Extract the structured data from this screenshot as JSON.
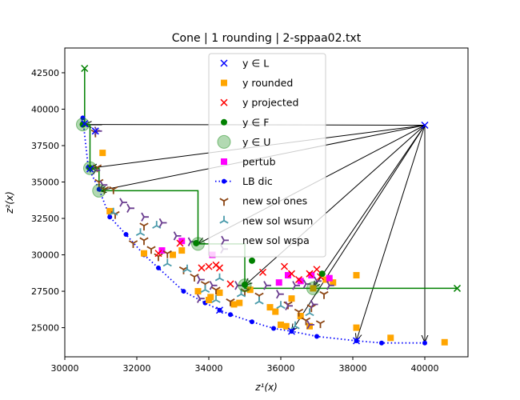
{
  "chart_data": {
    "type": "scatter",
    "title": "Cone | 1 rounding | 2-sppaa02.txt",
    "xlabel": "z¹(x)",
    "ylabel": "z²(x)",
    "xlim": [
      30000,
      41200
    ],
    "ylim": [
      23000,
      44200
    ],
    "xticks": [
      30000,
      32000,
      34000,
      36000,
      38000,
      40000
    ],
    "yticks": [
      25000,
      27500,
      30000,
      32500,
      35000,
      37500,
      40000,
      42500
    ],
    "xtick_labels": [
      "30000",
      "32000",
      "34000",
      "36000",
      "38000",
      "40000"
    ],
    "ytick_labels": [
      "25000",
      "27500",
      "30000",
      "32500",
      "35000",
      "37500",
      "40000",
      "42500"
    ],
    "legend_position": "upper-center",
    "legend": [
      {
        "key": "yL",
        "label": "y ∈ L",
        "marker": "x",
        "color": "#0000ff"
      },
      {
        "key": "yround",
        "label": "y rounded",
        "marker": "square",
        "color": "#ffa500"
      },
      {
        "key": "yproj",
        "label": "y projected",
        "marker": "x",
        "color": "#ff0000"
      },
      {
        "key": "yF",
        "label": "y ∈ F",
        "marker": "circle",
        "color": "#008000"
      },
      {
        "key": "yU",
        "label": "y ∈ U",
        "marker": "big-circle",
        "color": "#008000"
      },
      {
        "key": "pertub",
        "label": "pertub",
        "marker": "square",
        "color": "#ff00ff"
      },
      {
        "key": "lb",
        "label": "LB dic",
        "marker": "dot-line",
        "color": "#0000ff"
      },
      {
        "key": "ones",
        "label": "new sol ones",
        "marker": "tri-down",
        "color": "#8b4513"
      },
      {
        "key": "wsum",
        "label": "new sol wsum",
        "marker": "tri-up",
        "color": "#4a9bab"
      },
      {
        "key": "wspa",
        "label": "new sol wspa",
        "marker": "tri-left",
        "color": "#6a3d8f"
      }
    ],
    "series": {
      "lb_dic": [
        [
          30500,
          39400
        ],
        [
          30650,
          36000
        ],
        [
          30950,
          34500
        ],
        [
          31250,
          32600
        ],
        [
          31700,
          31400
        ],
        [
          32200,
          30000
        ],
        [
          32600,
          29100
        ],
        [
          33300,
          27500
        ],
        [
          33900,
          26700
        ],
        [
          34300,
          26200
        ],
        [
          34600,
          25900
        ],
        [
          35200,
          25400
        ],
        [
          35800,
          24950
        ],
        [
          36300,
          24750
        ],
        [
          37000,
          24400
        ],
        [
          38100,
          24100
        ],
        [
          38800,
          23950
        ],
        [
          40000,
          23950
        ]
      ],
      "yL": [
        [
          40000,
          38900
        ],
        [
          30550,
          39000
        ],
        [
          30850,
          38500
        ],
        [
          30700,
          35900
        ],
        [
          34300,
          26200
        ],
        [
          36300,
          24750
        ],
        [
          38100,
          24100
        ]
      ],
      "y_rounded": [
        [
          31050,
          37000
        ],
        [
          31250,
          33000
        ],
        [
          32200,
          30100
        ],
        [
          33000,
          30000
        ],
        [
          33250,
          30300
        ],
        [
          33700,
          27500
        ],
        [
          34000,
          26900
        ],
        [
          34050,
          27100
        ],
        [
          34300,
          27400
        ],
        [
          34700,
          26600
        ],
        [
          34850,
          26700
        ],
        [
          35150,
          27600
        ],
        [
          35700,
          26400
        ],
        [
          35850,
          26100
        ],
        [
          36000,
          25200
        ],
        [
          36150,
          25100
        ],
        [
          36300,
          27000
        ],
        [
          36550,
          25800
        ],
        [
          36800,
          25100
        ],
        [
          36900,
          27700
        ],
        [
          37250,
          28300
        ],
        [
          37450,
          28100
        ],
        [
          38100,
          25000
        ],
        [
          38100,
          28600
        ],
        [
          39050,
          24300
        ],
        [
          40550,
          24000
        ]
      ],
      "y_projected": [
        [
          32600,
          30100
        ],
        [
          33200,
          30800
        ],
        [
          33800,
          29100
        ],
        [
          34000,
          29200
        ],
        [
          34200,
          29300
        ],
        [
          34300,
          29100
        ],
        [
          34600,
          28000
        ],
        [
          35500,
          28800
        ],
        [
          36100,
          29200
        ],
        [
          36300,
          28700
        ],
        [
          36500,
          28300
        ],
        [
          36800,
          28700
        ],
        [
          37000,
          29000
        ],
        [
          37100,
          28500
        ]
      ],
      "y_F": [
        [
          30500,
          38950
        ],
        [
          30700,
          35950
        ],
        [
          33650,
          30800
        ],
        [
          35200,
          29600
        ],
        [
          35000,
          27950
        ],
        [
          37150,
          28700
        ]
      ],
      "y_U": [
        [
          30500,
          38950
        ],
        [
          30700,
          35950
        ],
        [
          30950,
          34400
        ],
        [
          33700,
          30750
        ],
        [
          35000,
          27900
        ],
        [
          36900,
          27700
        ]
      ],
      "pertub": [
        [
          32700,
          30300
        ],
        [
          33250,
          30950
        ],
        [
          34100,
          30000
        ],
        [
          35950,
          28100
        ],
        [
          36200,
          28600
        ],
        [
          36550,
          28200
        ],
        [
          36850,
          28600
        ],
        [
          37350,
          28400
        ]
      ],
      "new_sol_ones": [
        [
          30850,
          38400
        ],
        [
          30900,
          36000
        ],
        [
          30950,
          35000
        ],
        [
          31100,
          34500
        ],
        [
          31350,
          34500
        ],
        [
          31400,
          32800
        ],
        [
          32200,
          31000
        ],
        [
          32400,
          30400
        ],
        [
          32600,
          29900
        ],
        [
          32850,
          30100
        ],
        [
          33300,
          29000
        ],
        [
          33600,
          28500
        ],
        [
          33900,
          28000
        ],
        [
          34200,
          27600
        ],
        [
          34600,
          26800
        ],
        [
          35000,
          27500
        ],
        [
          35400,
          27200
        ],
        [
          36200,
          26600
        ],
        [
          36500,
          26100
        ],
        [
          36700,
          25500
        ],
        [
          36850,
          26400
        ],
        [
          37100,
          25300
        ],
        [
          37200,
          27300
        ],
        [
          31900,
          30800
        ],
        [
          32200,
          32000
        ]
      ],
      "new_sol_wsum": [
        [
          31350,
          32900
        ],
        [
          32100,
          31500
        ],
        [
          32550,
          32000
        ],
        [
          32850,
          29400
        ],
        [
          33400,
          29000
        ],
        [
          33900,
          27600
        ],
        [
          34900,
          27300
        ],
        [
          35400,
          26800
        ],
        [
          36000,
          26500
        ],
        [
          36400,
          25100
        ],
        [
          36800,
          26000
        ],
        [
          34300,
          28400
        ],
        [
          34200,
          26900
        ]
      ],
      "new_sol_wspa": [
        [
          30900,
          38500
        ],
        [
          30850,
          35800
        ],
        [
          31050,
          34800
        ],
        [
          31600,
          33600
        ],
        [
          31800,
          33200
        ],
        [
          32200,
          32600
        ],
        [
          32700,
          32200
        ],
        [
          33100,
          31300
        ],
        [
          33500,
          30900
        ],
        [
          33750,
          28300
        ],
        [
          33750,
          27000
        ],
        [
          34100,
          27900
        ],
        [
          34400,
          30400
        ],
        [
          34800,
          27900
        ],
        [
          35600,
          27900
        ],
        [
          35950,
          27300
        ],
        [
          36200,
          26500
        ],
        [
          36400,
          27900
        ],
        [
          36700,
          28000
        ],
        [
          36800,
          25200
        ],
        [
          36900,
          26600
        ],
        [
          37000,
          28200
        ],
        [
          37350,
          27900
        ]
      ],
      "black_arrows": {
        "origin": [
          40000,
          38900
        ],
        "targets": [
          [
            30550,
            38950
          ],
          [
            30700,
            35950
          ],
          [
            30950,
            34400
          ],
          [
            33700,
            30750
          ],
          [
            35000,
            27900
          ],
          [
            36300,
            24750
          ],
          [
            36900,
            27700
          ],
          [
            38100,
            24100
          ],
          [
            40000,
            24000
          ]
        ]
      },
      "green_path": [
        [
          30550,
          42800
        ],
        [
          30550,
          38950
        ],
        [
          30700,
          38950
        ],
        [
          30700,
          35950
        ],
        [
          30950,
          35950
        ],
        [
          30950,
          34400
        ],
        [
          33700,
          34400
        ],
        [
          33700,
          30750
        ],
        [
          35000,
          30750
        ],
        [
          35000,
          27700
        ],
        [
          40900,
          27700
        ]
      ]
    }
  }
}
